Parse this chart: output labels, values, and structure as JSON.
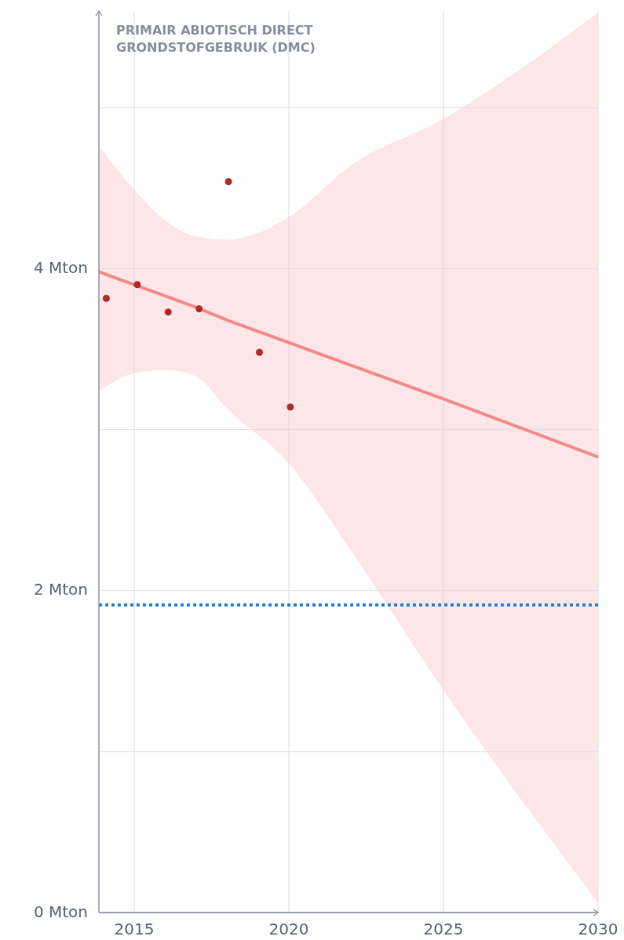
{
  "chart_data": {
    "type": "scatter",
    "title": "PRIMAIR ABIOTISCH DIRECT GRONDSTOFGEBRUIK (DMC)",
    "xlim": [
      2013.86,
      2030
    ],
    "xticks": [
      2015,
      2020,
      2025,
      2030
    ],
    "ylim": [
      0,
      5.6
    ],
    "yticks": [
      {
        "value": 0,
        "label": "0 Mton"
      },
      {
        "value": 1,
        "label": null
      },
      {
        "value": 2,
        "label": "2 Mton"
      },
      {
        "value": 3,
        "label": null
      },
      {
        "value": 4,
        "label": "4 Mton"
      },
      {
        "value": 5,
        "label": null
      }
    ],
    "grid": true,
    "marker": "circle",
    "series": [
      {
        "type": "line",
        "marker": "none",
        "color": "#f28b8b",
        "x": [
          2013.86,
          2015,
          2016,
          2017,
          2018,
          2020,
          2022,
          2025,
          2030
        ],
        "values": [
          3.98,
          3.9,
          3.83,
          3.76,
          3.68,
          3.54,
          3.4,
          3.19,
          2.83
        ],
        "lower": [
          3.24,
          3.35,
          3.37,
          3.33,
          3.13,
          2.79,
          2.25,
          1.38,
          0.06
        ],
        "upper": [
          4.76,
          4.49,
          4.3,
          4.2,
          4.18,
          4.32,
          4.64,
          4.93,
          5.59
        ]
      },
      {
        "color": "#b52a2a",
        "x": [
          2014.1,
          2015.1,
          2016.1,
          2017.1,
          2018.05,
          2019.05,
          2020.05
        ],
        "values": [
          3.815,
          3.9,
          3.73,
          3.75,
          4.54,
          3.48,
          3.14
        ]
      }
    ],
    "ref_lines": [
      {
        "axis": "y",
        "value": 1.91,
        "color": "#2e86de",
        "line_style": "dotted"
      }
    ]
  }
}
